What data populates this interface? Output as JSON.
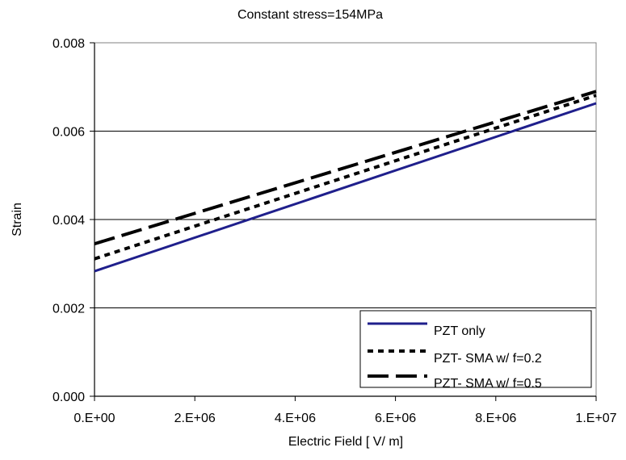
{
  "chart_data": {
    "type": "line",
    "title": "Constant stress=154MPa",
    "xlabel": "Electric Field [ V/ m]",
    "ylabel": "Strain",
    "xlim": [
      0,
      10000000
    ],
    "ylim": [
      0,
      0.008
    ],
    "x_ticks": [
      0,
      2000000,
      4000000,
      6000000,
      8000000,
      10000000
    ],
    "x_tick_labels": [
      "0.E+00",
      "2.E+06",
      "4.E+06",
      "6.E+06",
      "8.E+06",
      "1.E+07"
    ],
    "y_ticks": [
      0,
      0.002,
      0.004,
      0.006,
      0.008
    ],
    "y_tick_labels": [
      "0.000",
      "0.002",
      "0.004",
      "0.006",
      "0.008"
    ],
    "grid": "horizontal",
    "legend_position": "bottom-right",
    "series": [
      {
        "name": "PZT only",
        "color": "#1f1f8c",
        "style": "solid",
        "x": [
          0,
          10000000
        ],
        "y": [
          0.00283,
          0.00663
        ]
      },
      {
        "name": "PZT- SMA w/ f=0.2",
        "color": "#000000",
        "style": "dotted",
        "x": [
          0,
          10000000
        ],
        "y": [
          0.00311,
          0.00681
        ]
      },
      {
        "name": "PZT- SMA w/ f=0.5",
        "color": "#000000",
        "style": "dashed",
        "x": [
          0,
          10000000
        ],
        "y": [
          0.00345,
          0.0069
        ]
      }
    ]
  }
}
